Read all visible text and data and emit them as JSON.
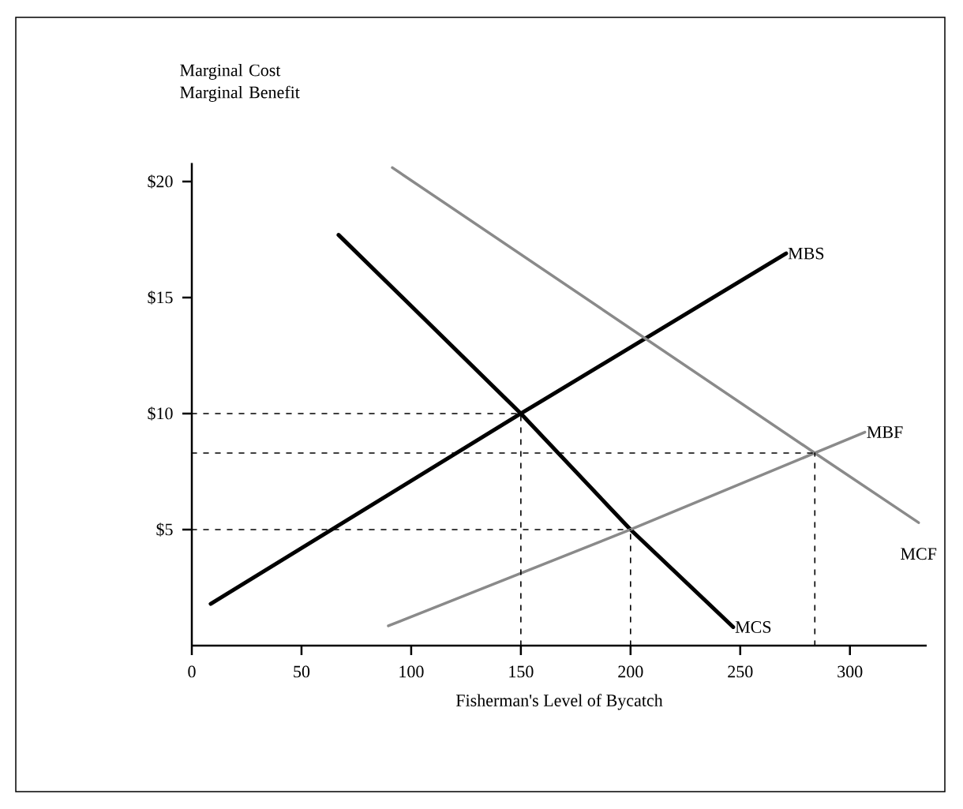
{
  "chart_data": {
    "type": "line",
    "xlabel": "Fisherman's Level of Bycatch",
    "ylabel": "Marginal Cost Marginal Benefit",
    "xlim": [
      0,
      335
    ],
    "ylim": [
      0,
      20.8
    ],
    "xticks": [
      0,
      50,
      100,
      150,
      200,
      250,
      300
    ],
    "yticks": [
      {
        "value": 5,
        "label": "$5"
      },
      {
        "value": 10,
        "label": "$10"
      },
      {
        "value": 15,
        "label": "$15"
      },
      {
        "value": 20,
        "label": "$20"
      }
    ],
    "marker": "none",
    "series": [
      {
        "name": "MBS",
        "color": "#000000",
        "line_style": "solid",
        "x": [
          8.6,
          150,
          270.9
        ],
        "values": [
          1.8,
          10,
          16.9
        ]
      },
      {
        "name": "MCS",
        "color": "#000000",
        "line_style": "solid",
        "x": [
          66.9,
          150,
          200,
          246.8
        ],
        "values": [
          17.7,
          10,
          5,
          0.8
        ]
      },
      {
        "name": "MCF",
        "color": "#8a8a8a",
        "line_style": "solid",
        "x": [
          91.4,
          284,
          331.3
        ],
        "values": [
          20.6,
          8.3,
          5.3
        ]
      },
      {
        "name": "MBF",
        "color": "#8a8a8a",
        "line_style": "solid",
        "x": [
          89.6,
          200,
          284,
          306.8
        ],
        "values": [
          0.85,
          5,
          8.3,
          9.2
        ]
      },
      {
        "color": "#000000",
        "line_style": "dashed",
        "x": [
          0,
          150
        ],
        "values": [
          10,
          10
        ]
      },
      {
        "color": "#000000",
        "line_style": "dashed",
        "x": [
          150,
          150
        ],
        "values": [
          0,
          10
        ]
      },
      {
        "color": "#000000",
        "line_style": "dashed",
        "x": [
          0,
          200
        ],
        "values": [
          5,
          5
        ]
      },
      {
        "color": "#000000",
        "line_style": "dashed",
        "x": [
          200,
          200
        ],
        "values": [
          0,
          5
        ]
      },
      {
        "color": "#000000",
        "line_style": "dashed",
        "x": [
          0,
          284
        ],
        "values": [
          8.3,
          8.3
        ]
      },
      {
        "color": "#000000",
        "line_style": "dashed",
        "x": [
          284,
          284
        ],
        "values": [
          0,
          8.3
        ]
      }
    ]
  }
}
